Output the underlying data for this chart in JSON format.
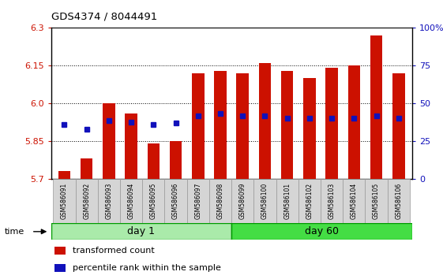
{
  "title": "GDS4374 / 8044491",
  "samples": [
    "GSM586091",
    "GSM586092",
    "GSM586093",
    "GSM586094",
    "GSM586095",
    "GSM586096",
    "GSM586097",
    "GSM586098",
    "GSM586099",
    "GSM586100",
    "GSM586101",
    "GSM586102",
    "GSM586103",
    "GSM586104",
    "GSM586105",
    "GSM586106"
  ],
  "bar_values": [
    5.73,
    5.78,
    6.0,
    5.96,
    5.84,
    5.85,
    6.12,
    6.13,
    6.12,
    6.16,
    6.13,
    6.1,
    6.14,
    6.15,
    6.27,
    6.12
  ],
  "blue_dot_values": [
    5.915,
    5.895,
    5.93,
    5.925,
    5.915,
    5.92,
    5.95,
    5.96,
    5.95,
    5.95,
    5.94,
    5.94,
    5.94,
    5.94,
    5.95,
    5.94
  ],
  "ylim": [
    5.7,
    6.3
  ],
  "yticks_left": [
    5.7,
    5.85,
    6.0,
    6.15,
    6.3
  ],
  "yticks_right": [
    0,
    25,
    50,
    75,
    100
  ],
  "bar_color": "#cc1100",
  "dot_color": "#1111bb",
  "bar_bottom": 5.7,
  "day1_count": 8,
  "day1_color": "#aaeaaa",
  "day60_color": "#44dd44",
  "band_edge": "#009900",
  "legend_red": "transformed count",
  "legend_blue": "percentile rank within the sample",
  "xlabel": "time",
  "day1_label": "day 1",
  "day60_label": "day 60"
}
